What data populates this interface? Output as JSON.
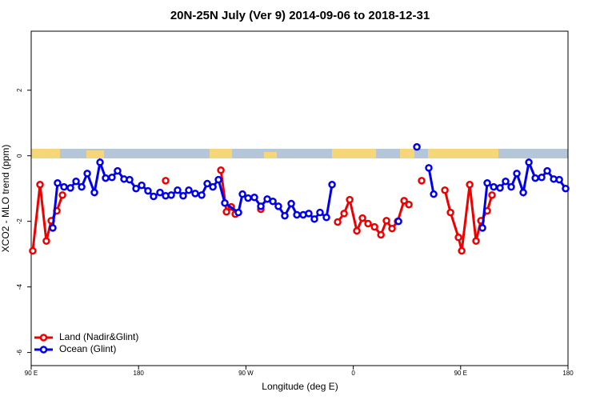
{
  "chart_data": {
    "type": "line",
    "title": "20N-25N July (Ver 9)   2014-09-06 to 2018-12-31",
    "x_label": "Longitude (deg E)",
    "y_label": "XCO2 - MLO trend (ppm)",
    "xlim": [
      90,
      540
    ],
    "ylim": [
      -6.4,
      3.8
    ],
    "xticks": [
      {
        "value": 90,
        "label": "90 E"
      },
      180,
      {
        "value": 270,
        "label": "90 W"
      },
      {
        "value": 360,
        "label": "0"
      },
      {
        "value": 450,
        "label": "90 E"
      },
      {
        "value": 540,
        "label": "180"
      }
    ],
    "yticks": [
      -6,
      -4,
      -2,
      0,
      2
    ],
    "legend": "bottom-left",
    "series": [
      {
        "name": "Land (Nadir&Glint)",
        "color": "#ee0000",
        "x": [
          91.3,
          97.4,
          102.7,
          106.8,
          111.5,
          116.2,
          null,
          202.7,
          null,
          249.0,
          253.7,
          257.7,
          261.1,
          null,
          282.5,
          null,
          346.9,
          352.3,
          357.0,
          363.0,
          367.7,
          372.4,
          377.8,
          383.2,
          387.8,
          392.5,
          397.2,
          402.6,
          406.6,
          null,
          417.3,
          null,
          436.8,
          441.5,
          448.2,
          450.9,
          457.6,
          462.9,
          467.0,
          472.3,
          476.3
        ],
        "values": [
          -2.9,
          -0.88,
          -2.6,
          -1.98,
          -1.68,
          -1.2,
          null,
          -0.76,
          null,
          -0.44,
          -1.71,
          -1.56,
          -1.78,
          null,
          -1.63,
          null,
          -2.02,
          -1.76,
          -1.34,
          -2.29,
          -1.9,
          -2.07,
          -2.17,
          -2.41,
          -1.98,
          -2.22,
          -2.0,
          -1.37,
          -1.49,
          null,
          -0.76,
          null,
          -1.05,
          -1.73,
          -2.49,
          -2.9,
          -0.88,
          -2.6,
          -1.98,
          -1.68,
          -1.2
        ]
      },
      {
        "name": "Ocean (Glint)",
        "color": "#0000ee",
        "x": [
          108.1,
          112.1,
          117.5,
          122.9,
          127.6,
          132.3,
          137.0,
          143.0,
          147.7,
          152.4,
          157.7,
          162.4,
          167.8,
          172.5,
          177.9,
          182.6,
          187.9,
          192.6,
          198.0,
          202.7,
          207.4,
          212.7,
          217.4,
          222.1,
          227.5,
          232.9,
          237.6,
          242.3,
          247.0,
          252.3,
          263.7,
          267.1,
          271.8,
          277.1,
          282.5,
          287.9,
          292.6,
          297.2,
          302.6,
          308.0,
          312.7,
          318.0,
          322.7,
          327.4,
          332.1,
          337.5,
          342.2,
          null,
          397.9,
          null,
          413.3,
          null,
          423.3,
          427.4,
          null,
          468.3,
          472.3,
          477.7,
          483.0,
          487.7,
          492.4,
          497.1,
          502.5,
          507.2,
          512.6,
          517.9,
          522.6,
          528.0,
          532.7,
          538.0
        ],
        "values": [
          -2.2,
          -0.83,
          -0.95,
          -0.98,
          -0.78,
          -0.95,
          -0.54,
          -1.12,
          -0.2,
          -0.68,
          -0.66,
          -0.46,
          -0.71,
          -0.73,
          -1.0,
          -0.9,
          -1.07,
          -1.24,
          -1.12,
          -1.22,
          -1.2,
          -1.05,
          -1.22,
          -1.05,
          -1.15,
          -1.2,
          -0.85,
          -0.95,
          -0.73,
          -1.44,
          -1.73,
          -1.17,
          -1.29,
          -1.27,
          -1.54,
          -1.32,
          -1.39,
          -1.54,
          -1.83,
          -1.46,
          -1.8,
          -1.8,
          -1.76,
          -1.93,
          -1.73,
          -1.88,
          -0.88,
          null,
          -2.0,
          null,
          0.27,
          null,
          -0.37,
          -1.17,
          null,
          -2.2,
          -0.83,
          -0.95,
          -0.98,
          -0.78,
          -0.95,
          -0.54,
          -1.12,
          -0.2,
          -0.68,
          -0.66,
          -0.46,
          -0.71,
          -0.73,
          -1.0
        ]
      }
    ]
  }
}
